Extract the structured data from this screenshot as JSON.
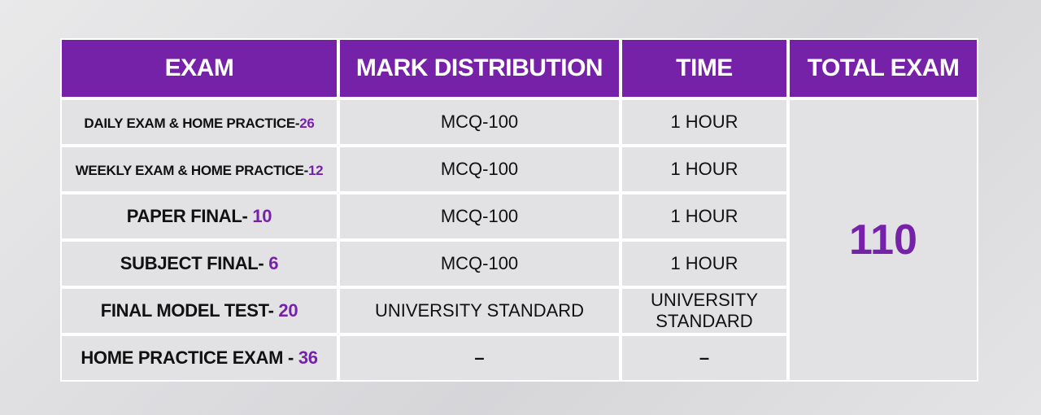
{
  "headers": {
    "exam": "EXAM",
    "mark": "MARK DISTRIBUTION",
    "time": "TIME",
    "total": "TOTAL EXAM"
  },
  "rows": [
    {
      "name": "DAILY EXAM & HOME PRACTICE-",
      "count": "26",
      "mark": "MCQ-100",
      "time": "1 HOUR"
    },
    {
      "name": "WEEKLY EXAM & HOME PRACTICE-",
      "count": "12",
      "mark": "MCQ-100",
      "time": "1 HOUR"
    },
    {
      "name": "PAPER FINAL- ",
      "count": "10",
      "mark": "MCQ-100",
      "time": "1 HOUR"
    },
    {
      "name": "SUBJECT FINAL- ",
      "count": "6",
      "mark": "MCQ-100",
      "time": "1 HOUR"
    },
    {
      "name": "FINAL MODEL TEST- ",
      "count": "20",
      "mark": "UNIVERSITY STANDARD",
      "time": "UNIVERSITY STANDARD"
    },
    {
      "name": "HOME PRACTICE EXAM - ",
      "count": "36",
      "mark": "–",
      "time": "–"
    }
  ],
  "total_exam": "110",
  "colors": {
    "header_bg": "#7622a8",
    "accent": "#7622a8",
    "cell_bg": "#dedee1"
  }
}
